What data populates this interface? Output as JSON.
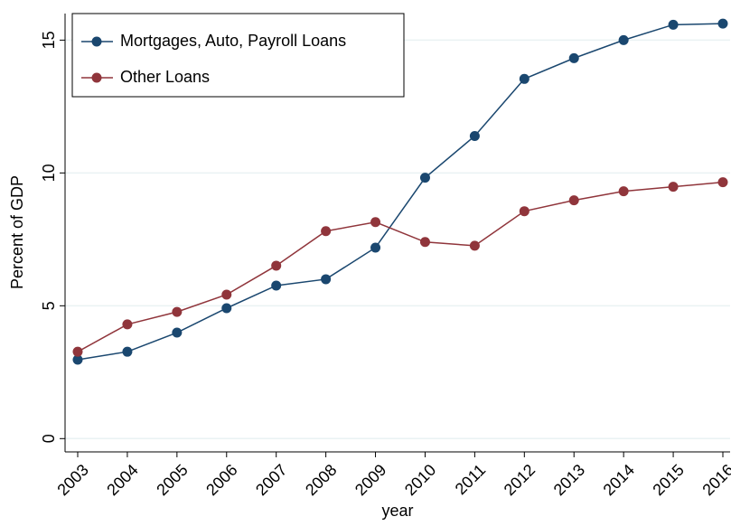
{
  "chart_data": {
    "type": "line",
    "x": [
      2003,
      2004,
      2005,
      2006,
      2007,
      2008,
      2009,
      2010,
      2011,
      2012,
      2013,
      2014,
      2015,
      2016
    ],
    "series": [
      {
        "name": "Mortgages, Auto, Payroll Loans",
        "color": "#1a476f",
        "values": [
          2.97,
          3.27,
          3.99,
          4.91,
          5.76,
          6.0,
          7.19,
          9.82,
          11.39,
          13.54,
          14.32,
          15.0,
          15.58,
          15.62
        ]
      },
      {
        "name": "Other Loans",
        "color": "#90353b",
        "values": [
          3.27,
          4.3,
          4.77,
          5.42,
          6.51,
          7.81,
          8.15,
          7.4,
          7.26,
          8.56,
          8.97,
          9.31,
          9.48,
          9.65
        ]
      }
    ],
    "xlim": [
      2003,
      2016
    ],
    "xticks": [
      2003,
      2004,
      2005,
      2006,
      2007,
      2008,
      2009,
      2010,
      2011,
      2012,
      2013,
      2014,
      2015,
      2016
    ],
    "ylim": [
      -0.5,
      16
    ],
    "yticks": [
      0,
      5,
      10,
      15
    ],
    "xlabel": "year",
    "ylabel": "Percent of GDP",
    "grid": true,
    "legend": "top-left"
  }
}
